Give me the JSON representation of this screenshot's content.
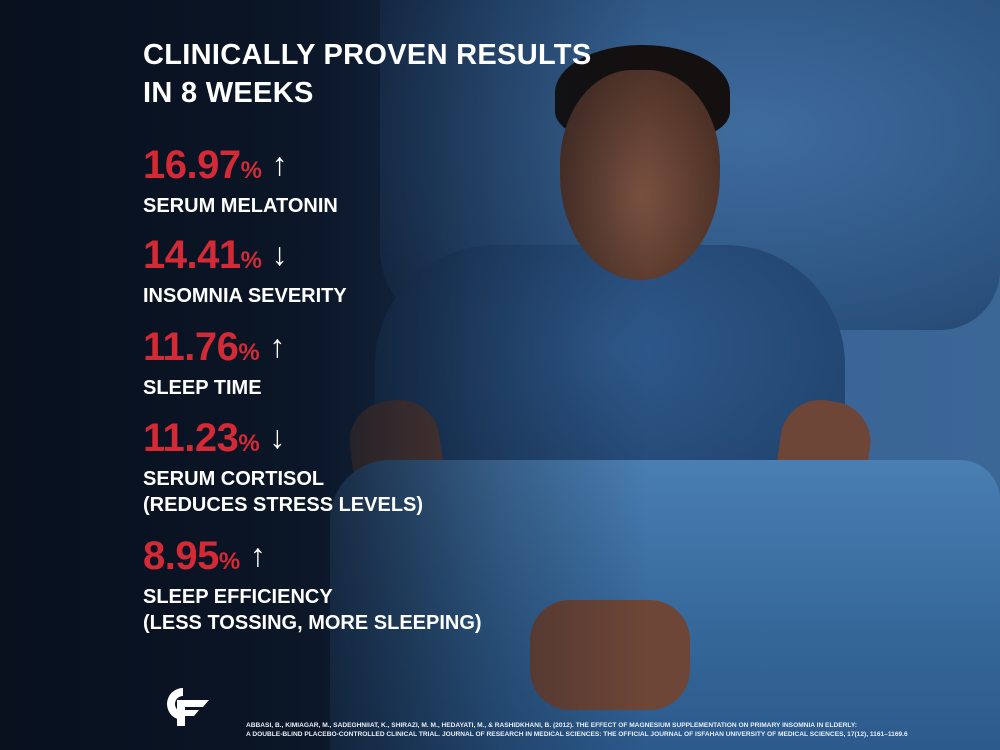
{
  "title_lines": [
    "CLINICALLY PROVEN RESULTS",
    "IN 8 WEEKS"
  ],
  "stats": [
    {
      "value": "16.97",
      "unit": "%",
      "direction": "up",
      "arrow": "↑",
      "label_lines": [
        "SERUM MELATONIN"
      ]
    },
    {
      "value": "14.41",
      "unit": "%",
      "direction": "down",
      "arrow": "↓",
      "label_lines": [
        "INSOMNIA SEVERITY"
      ]
    },
    {
      "value": "11.76",
      "unit": "%",
      "direction": "up",
      "arrow": "↑",
      "label_lines": [
        "SLEEP TIME"
      ]
    },
    {
      "value": "11.23",
      "unit": "%",
      "direction": "down",
      "arrow": "↓",
      "label_lines": [
        "SERUM CORTISOL",
        "(REDUCES STRESS LEVELS)"
      ]
    },
    {
      "value": "8.95",
      "unit": "%",
      "direction": "up",
      "arrow": "↑",
      "label_lines": [
        "SLEEP EFFICIENCY",
        "(LESS TOSSING, MORE SLEEPING)"
      ]
    }
  ],
  "logo_text": "CF",
  "citation_lines": [
    "ABBASI, B., KIMIAGAR, M., SADEGHNIIAT, K., SHIRAZI, M. M., HEDAYATI, M., & RASHIDKHANI, B. (2012). THE EFFECT OF MAGNESIUM SUPPLEMENTATION ON PRIMARY INSOMNIA IN ELDERLY:",
    "A DOUBLE-BLIND PLACEBO-CONTROLLED CLINICAL TRIAL. JOURNAL OF RESEARCH IN MEDICAL SCIENCES: THE OFFICIAL JOURNAL OF ISFAHAN UNIVERSITY OF MEDICAL SCIENCES, 17(12), 1161–1169.6"
  ],
  "colors": {
    "accent_red": "#d42a36",
    "background_navy": "#0c1626",
    "text": "#ffffff"
  }
}
